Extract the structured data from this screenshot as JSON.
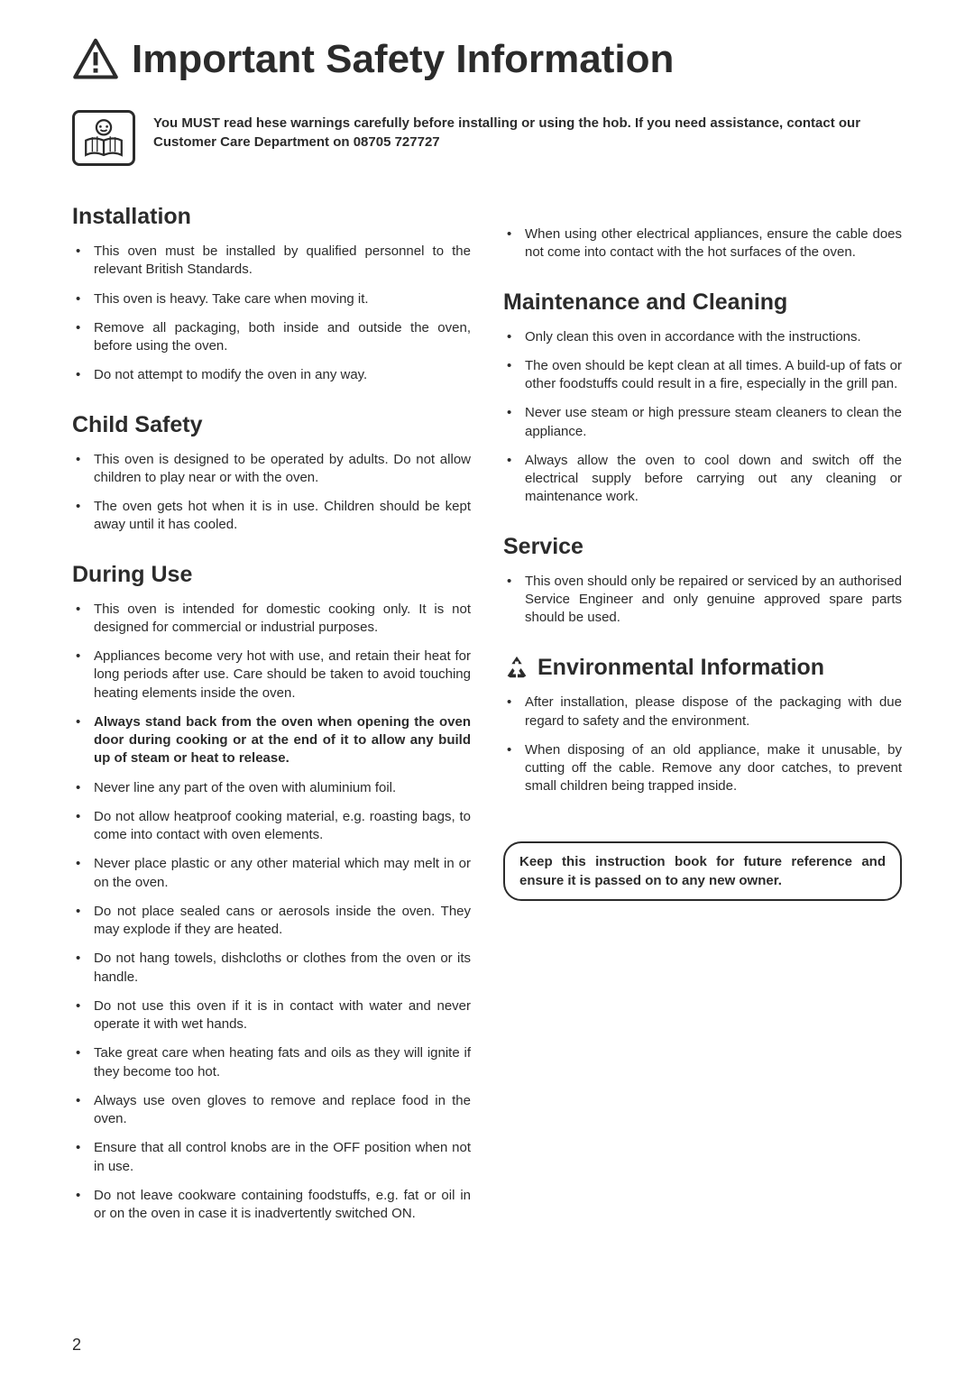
{
  "title": "Important Safety Information",
  "intro": "You MUST read hese warnings carefully before installing or using the hob. If you need assistance, contact our Customer Care Department on 08705 727727",
  "sections": {
    "installation": {
      "heading": "Installation",
      "items": [
        "This oven must be installed by qualified personnel to the relevant British Standards.",
        "This oven is heavy. Take care when moving it.",
        "Remove all packaging, both inside and outside the oven, before using the oven.",
        "Do not attempt to modify the oven in any way."
      ]
    },
    "child": {
      "heading": "Child Safety",
      "items": [
        "This oven is designed to be operated by adults. Do not allow children to play near or with the oven.",
        "The oven gets hot when it is in use. Children should be kept away until it has cooled."
      ]
    },
    "during": {
      "heading": "During Use",
      "items": [
        "This oven is intended for domestic cooking only. It is not designed for commercial or industrial purposes.",
        "Appliances become very hot with use, and retain their heat for long periods after use. Care should be taken to avoid touching heating elements inside the oven.",
        "Always stand back from the oven when opening the oven door during cooking or at the end of it to allow any build up of steam or heat to release.",
        "Never line any part of the oven with aluminium foil.",
        "Do not allow heatproof cooking material, e.g. roasting bags, to come into contact with oven elements.",
        "Never place plastic or any other material which may melt in or on the oven.",
        "Do not place sealed cans or aerosols inside the oven. They may explode if they are heated.",
        "Do not hang towels, dishcloths or clothes from the oven or its handle.",
        "Do not use this oven if it is in contact with water and never operate it with wet hands.",
        "Take great care when heating fats and oils as they will ignite if they become too hot.",
        "Always use oven gloves to remove and replace food in the oven.",
        "Ensure that all control knobs are in the OFF position when not in use.",
        "Do not leave cookware containing foodstuffs, e.g. fat or oil in or on the oven in case it is inadvertently switched ON."
      ],
      "bold_indices": [
        2
      ]
    },
    "during_cont": {
      "items": [
        "When using other electrical appliances, ensure the cable does not come into contact with the hot surfaces of the oven."
      ]
    },
    "maintenance": {
      "heading": "Maintenance and Cleaning",
      "items": [
        "Only clean this oven in accordance with the instructions.",
        "The oven should be kept clean at all times. A build-up of fats or other foodstuffs could result in a fire, especially in the grill pan.",
        "Never use steam or high pressure steam cleaners to clean the appliance.",
        "Always allow the oven to cool down and switch off the electrical supply before carrying out any cleaning or maintenance work."
      ]
    },
    "service": {
      "heading": "Service",
      "items": [
        "This oven should only be repaired or serviced by an authorised Service Engineer and only genuine approved spare parts should be used."
      ]
    },
    "environmental": {
      "heading": "Environmental Information",
      "items": [
        "After installation, please dispose of the packaging with due regard to safety and the environment.",
        "When disposing of an old appliance, make it unusable, by cutting off the cable. Remove any door catches, to prevent small children being trapped inside."
      ]
    }
  },
  "keepbox": "Keep this instruction book for future reference and ensure it is passed on to any new owner.",
  "page_number": "2",
  "colors": {
    "text": "#2b2b2b",
    "background": "#ffffff",
    "border": "#2b2b2b"
  }
}
